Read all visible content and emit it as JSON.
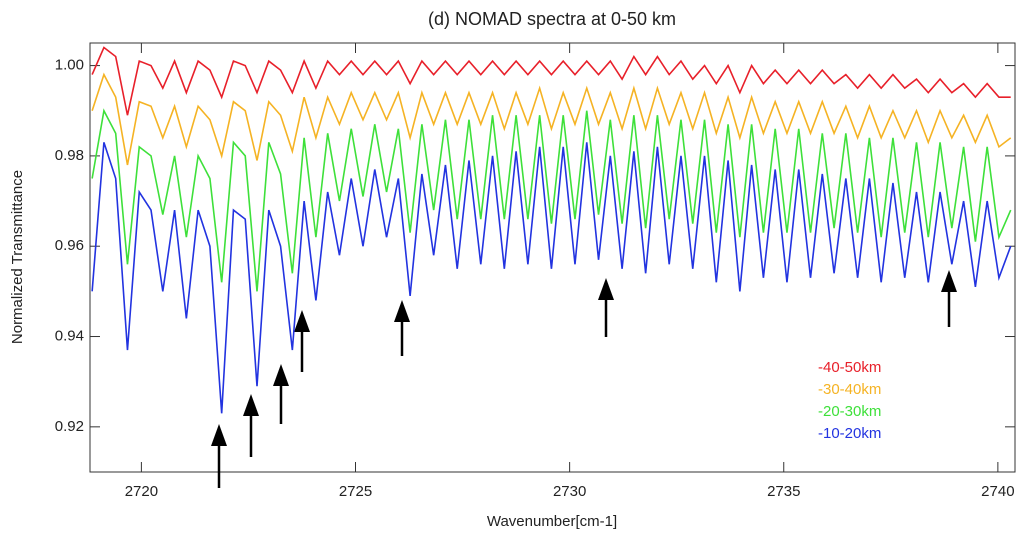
{
  "chart_data": {
    "type": "line",
    "title": "(d) NOMAD spectra at 0-50 km",
    "x_label": "Wavenumber[cm-1]",
    "y_label": "Normalized Transmittance",
    "xlim": [
      2718.8,
      2740.4
    ],
    "ylim": [
      0.91,
      1.005
    ],
    "xticks": [
      2720,
      2725,
      2730,
      2735,
      2740
    ],
    "yticks": [
      0.92,
      0.94,
      0.96,
      0.98,
      {
        "value": 1,
        "label": "1.00"
      }
    ],
    "legend": "lower right",
    "x": [
      2718.85,
      2719.125,
      2719.4,
      2719.675,
      2719.95,
      2720.225,
      2720.5,
      2720.775,
      2721.05,
      2721.325,
      2721.6,
      2721.875,
      2722.15,
      2722.425,
      2722.7,
      2722.975,
      2723.25,
      2723.525,
      2723.8,
      2724.075,
      2724.35,
      2724.625,
      2724.9,
      2725.175,
      2725.45,
      2725.725,
      2726.0,
      2726.275,
      2726.55,
      2726.825,
      2727.1,
      2727.375,
      2727.65,
      2727.925,
      2728.2,
      2728.475,
      2728.75,
      2729.025,
      2729.3,
      2729.575,
      2729.85,
      2730.125,
      2730.4,
      2730.675,
      2730.95,
      2731.225,
      2731.5,
      2731.775,
      2732.05,
      2732.325,
      2732.6,
      2732.875,
      2733.15,
      2733.425,
      2733.7,
      2733.975,
      2734.25,
      2734.525,
      2734.8,
      2735.075,
      2735.35,
      2735.625,
      2735.9,
      2736.175,
      2736.45,
      2736.725,
      2737.0,
      2737.275,
      2737.55,
      2737.825,
      2738.1,
      2738.375,
      2738.65,
      2738.925,
      2739.2,
      2739.475,
      2739.75,
      2740.025,
      2740.3
    ],
    "series": [
      {
        "name": "-40-50km",
        "color": "#e8202a",
        "values": [
          0.998,
          1.004,
          1.002,
          0.989,
          1.001,
          1.0,
          0.995,
          1.001,
          0.994,
          1.001,
          0.999,
          0.993,
          1.001,
          1.0,
          0.994,
          1.001,
          0.999,
          0.994,
          1.001,
          0.995,
          1.001,
          0.998,
          1.001,
          0.998,
          1.001,
          0.998,
          1.001,
          0.996,
          1.001,
          0.998,
          1.001,
          0.998,
          1.001,
          0.998,
          1.001,
          0.998,
          1.001,
          0.998,
          1.001,
          0.998,
          1.001,
          0.998,
          1.001,
          0.998,
          1.001,
          0.997,
          1.002,
          0.998,
          1.002,
          0.998,
          1.001,
          0.997,
          1.0,
          0.996,
          1.0,
          0.994,
          1.0,
          0.996,
          0.999,
          0.996,
          0.999,
          0.996,
          0.999,
          0.996,
          0.998,
          0.995,
          0.998,
          0.995,
          0.998,
          0.995,
          0.997,
          0.994,
          0.997,
          0.994,
          0.996,
          0.993,
          0.996,
          0.993,
          0.993
        ]
      },
      {
        "name": "-30-40km",
        "color": "#f5b324",
        "values": [
          0.99,
          0.998,
          0.993,
          0.978,
          0.992,
          0.991,
          0.984,
          0.991,
          0.982,
          0.991,
          0.988,
          0.98,
          0.992,
          0.99,
          0.979,
          0.992,
          0.989,
          0.981,
          0.993,
          0.984,
          0.993,
          0.987,
          0.994,
          0.988,
          0.994,
          0.988,
          0.994,
          0.984,
          0.994,
          0.987,
          0.994,
          0.987,
          0.994,
          0.987,
          0.994,
          0.986,
          0.994,
          0.987,
          0.995,
          0.986,
          0.994,
          0.987,
          0.995,
          0.987,
          0.994,
          0.986,
          0.995,
          0.986,
          0.995,
          0.987,
          0.994,
          0.986,
          0.994,
          0.985,
          0.993,
          0.984,
          0.993,
          0.985,
          0.992,
          0.985,
          0.992,
          0.985,
          0.992,
          0.985,
          0.991,
          0.984,
          0.991,
          0.984,
          0.99,
          0.984,
          0.99,
          0.983,
          0.99,
          0.984,
          0.989,
          0.983,
          0.989,
          0.982,
          0.984
        ]
      },
      {
        "name": "-20-30km",
        "color": "#3ee03a",
        "values": [
          0.975,
          0.99,
          0.985,
          0.956,
          0.982,
          0.98,
          0.967,
          0.98,
          0.962,
          0.98,
          0.975,
          0.952,
          0.983,
          0.98,
          0.95,
          0.983,
          0.976,
          0.954,
          0.984,
          0.962,
          0.985,
          0.97,
          0.986,
          0.971,
          0.987,
          0.972,
          0.986,
          0.963,
          0.987,
          0.968,
          0.988,
          0.966,
          0.988,
          0.966,
          0.989,
          0.966,
          0.989,
          0.966,
          0.989,
          0.965,
          0.989,
          0.966,
          0.99,
          0.967,
          0.988,
          0.965,
          0.989,
          0.964,
          0.989,
          0.966,
          0.988,
          0.965,
          0.988,
          0.963,
          0.987,
          0.962,
          0.987,
          0.963,
          0.986,
          0.963,
          0.986,
          0.963,
          0.985,
          0.964,
          0.985,
          0.963,
          0.984,
          0.962,
          0.984,
          0.963,
          0.983,
          0.962,
          0.983,
          0.964,
          0.982,
          0.961,
          0.982,
          0.962,
          0.968
        ]
      },
      {
        "name": "-10-20km",
        "color": "#2233e0",
        "values": [
          0.95,
          0.983,
          0.975,
          0.937,
          0.972,
          0.968,
          0.95,
          0.968,
          0.944,
          0.968,
          0.96,
          0.923,
          0.968,
          0.966,
          0.929,
          0.968,
          0.96,
          0.937,
          0.97,
          0.948,
          0.972,
          0.958,
          0.975,
          0.96,
          0.977,
          0.962,
          0.975,
          0.949,
          0.976,
          0.958,
          0.978,
          0.955,
          0.979,
          0.956,
          0.98,
          0.955,
          0.981,
          0.956,
          0.982,
          0.955,
          0.982,
          0.956,
          0.983,
          0.957,
          0.98,
          0.955,
          0.981,
          0.954,
          0.982,
          0.956,
          0.98,
          0.955,
          0.98,
          0.952,
          0.979,
          0.95,
          0.978,
          0.953,
          0.977,
          0.952,
          0.977,
          0.953,
          0.976,
          0.954,
          0.975,
          0.953,
          0.975,
          0.952,
          0.974,
          0.953,
          0.972,
          0.952,
          0.972,
          0.956,
          0.97,
          0.951,
          0.97,
          0.953,
          0.96
        ]
      }
    ]
  }
}
